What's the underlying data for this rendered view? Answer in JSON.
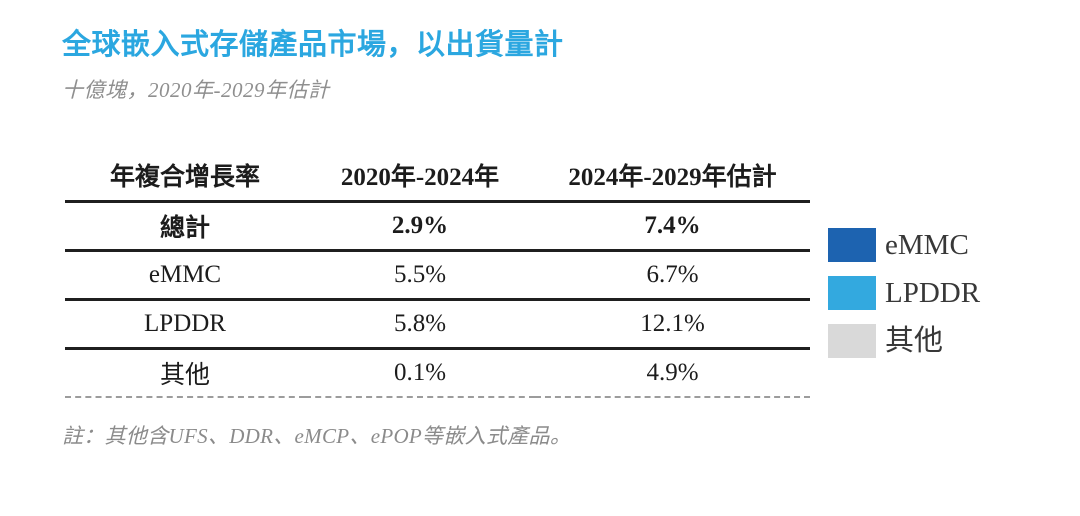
{
  "header": {
    "title": "全球嵌入式存儲產品市場，以出貨量計",
    "subtitle": "十億塊，2020年-2029年估計"
  },
  "table": {
    "columns": [
      "年複合增長率",
      "2020年-2024年",
      "2024年-2029年估計"
    ],
    "rows": [
      {
        "label": "總計",
        "values": [
          "2.9%",
          "7.4%"
        ]
      },
      {
        "label": "eMMC",
        "values": [
          "5.5%",
          "6.7%"
        ]
      },
      {
        "label": "LPDDR",
        "values": [
          "5.8%",
          "12.1%"
        ]
      },
      {
        "label": "其他",
        "values": [
          "0.1%",
          "4.9%"
        ]
      }
    ]
  },
  "legend": {
    "items": [
      {
        "label": "eMMC",
        "color": "#1d63b0"
      },
      {
        "label": "LPDDR",
        "color": "#33a9df"
      },
      {
        "label": "其他",
        "color": "#d9d9d9"
      }
    ]
  },
  "footnote": "註：其他含UFS、DDR、eMCP、ePOP等嵌入式產品。",
  "colors": {
    "title_accent": "#2ba7e0",
    "muted_text": "#8f8f8f",
    "table_line": "#1f1f1f",
    "dashed_line": "#9c9c9c"
  },
  "chart_data": {
    "type": "table",
    "title": "全球嵌入式存儲產品市場，以出貨量計",
    "subtitle": "十億塊，2020年-2029年估計",
    "unit": "十億塊",
    "columns": [
      "年複合增長率",
      "2020年-2024年",
      "2024年-2029年估計"
    ],
    "rows": [
      [
        "總計",
        "2.9%",
        "7.4%"
      ],
      [
        "eMMC",
        "5.5%",
        "6.7%"
      ],
      [
        "LPDDR",
        "5.8%",
        "12.1%"
      ],
      [
        "其他",
        "0.1%",
        "4.9%"
      ]
    ],
    "cagr_percent": {
      "總計": {
        "2020-2024": 2.9,
        "2024-2029E": 7.4
      },
      "eMMC": {
        "2020-2024": 5.5,
        "2024-2029E": 6.7
      },
      "LPDDR": {
        "2020-2024": 5.8,
        "2024-2029E": 12.1
      },
      "其他": {
        "2020-2024": 0.1,
        "2024-2029E": 4.9
      }
    },
    "legend": [
      "eMMC",
      "LPDDR",
      "其他"
    ],
    "legend_position": "right",
    "note": "註：其他含UFS、DDR、eMCP、ePOP等嵌入式產品。"
  }
}
